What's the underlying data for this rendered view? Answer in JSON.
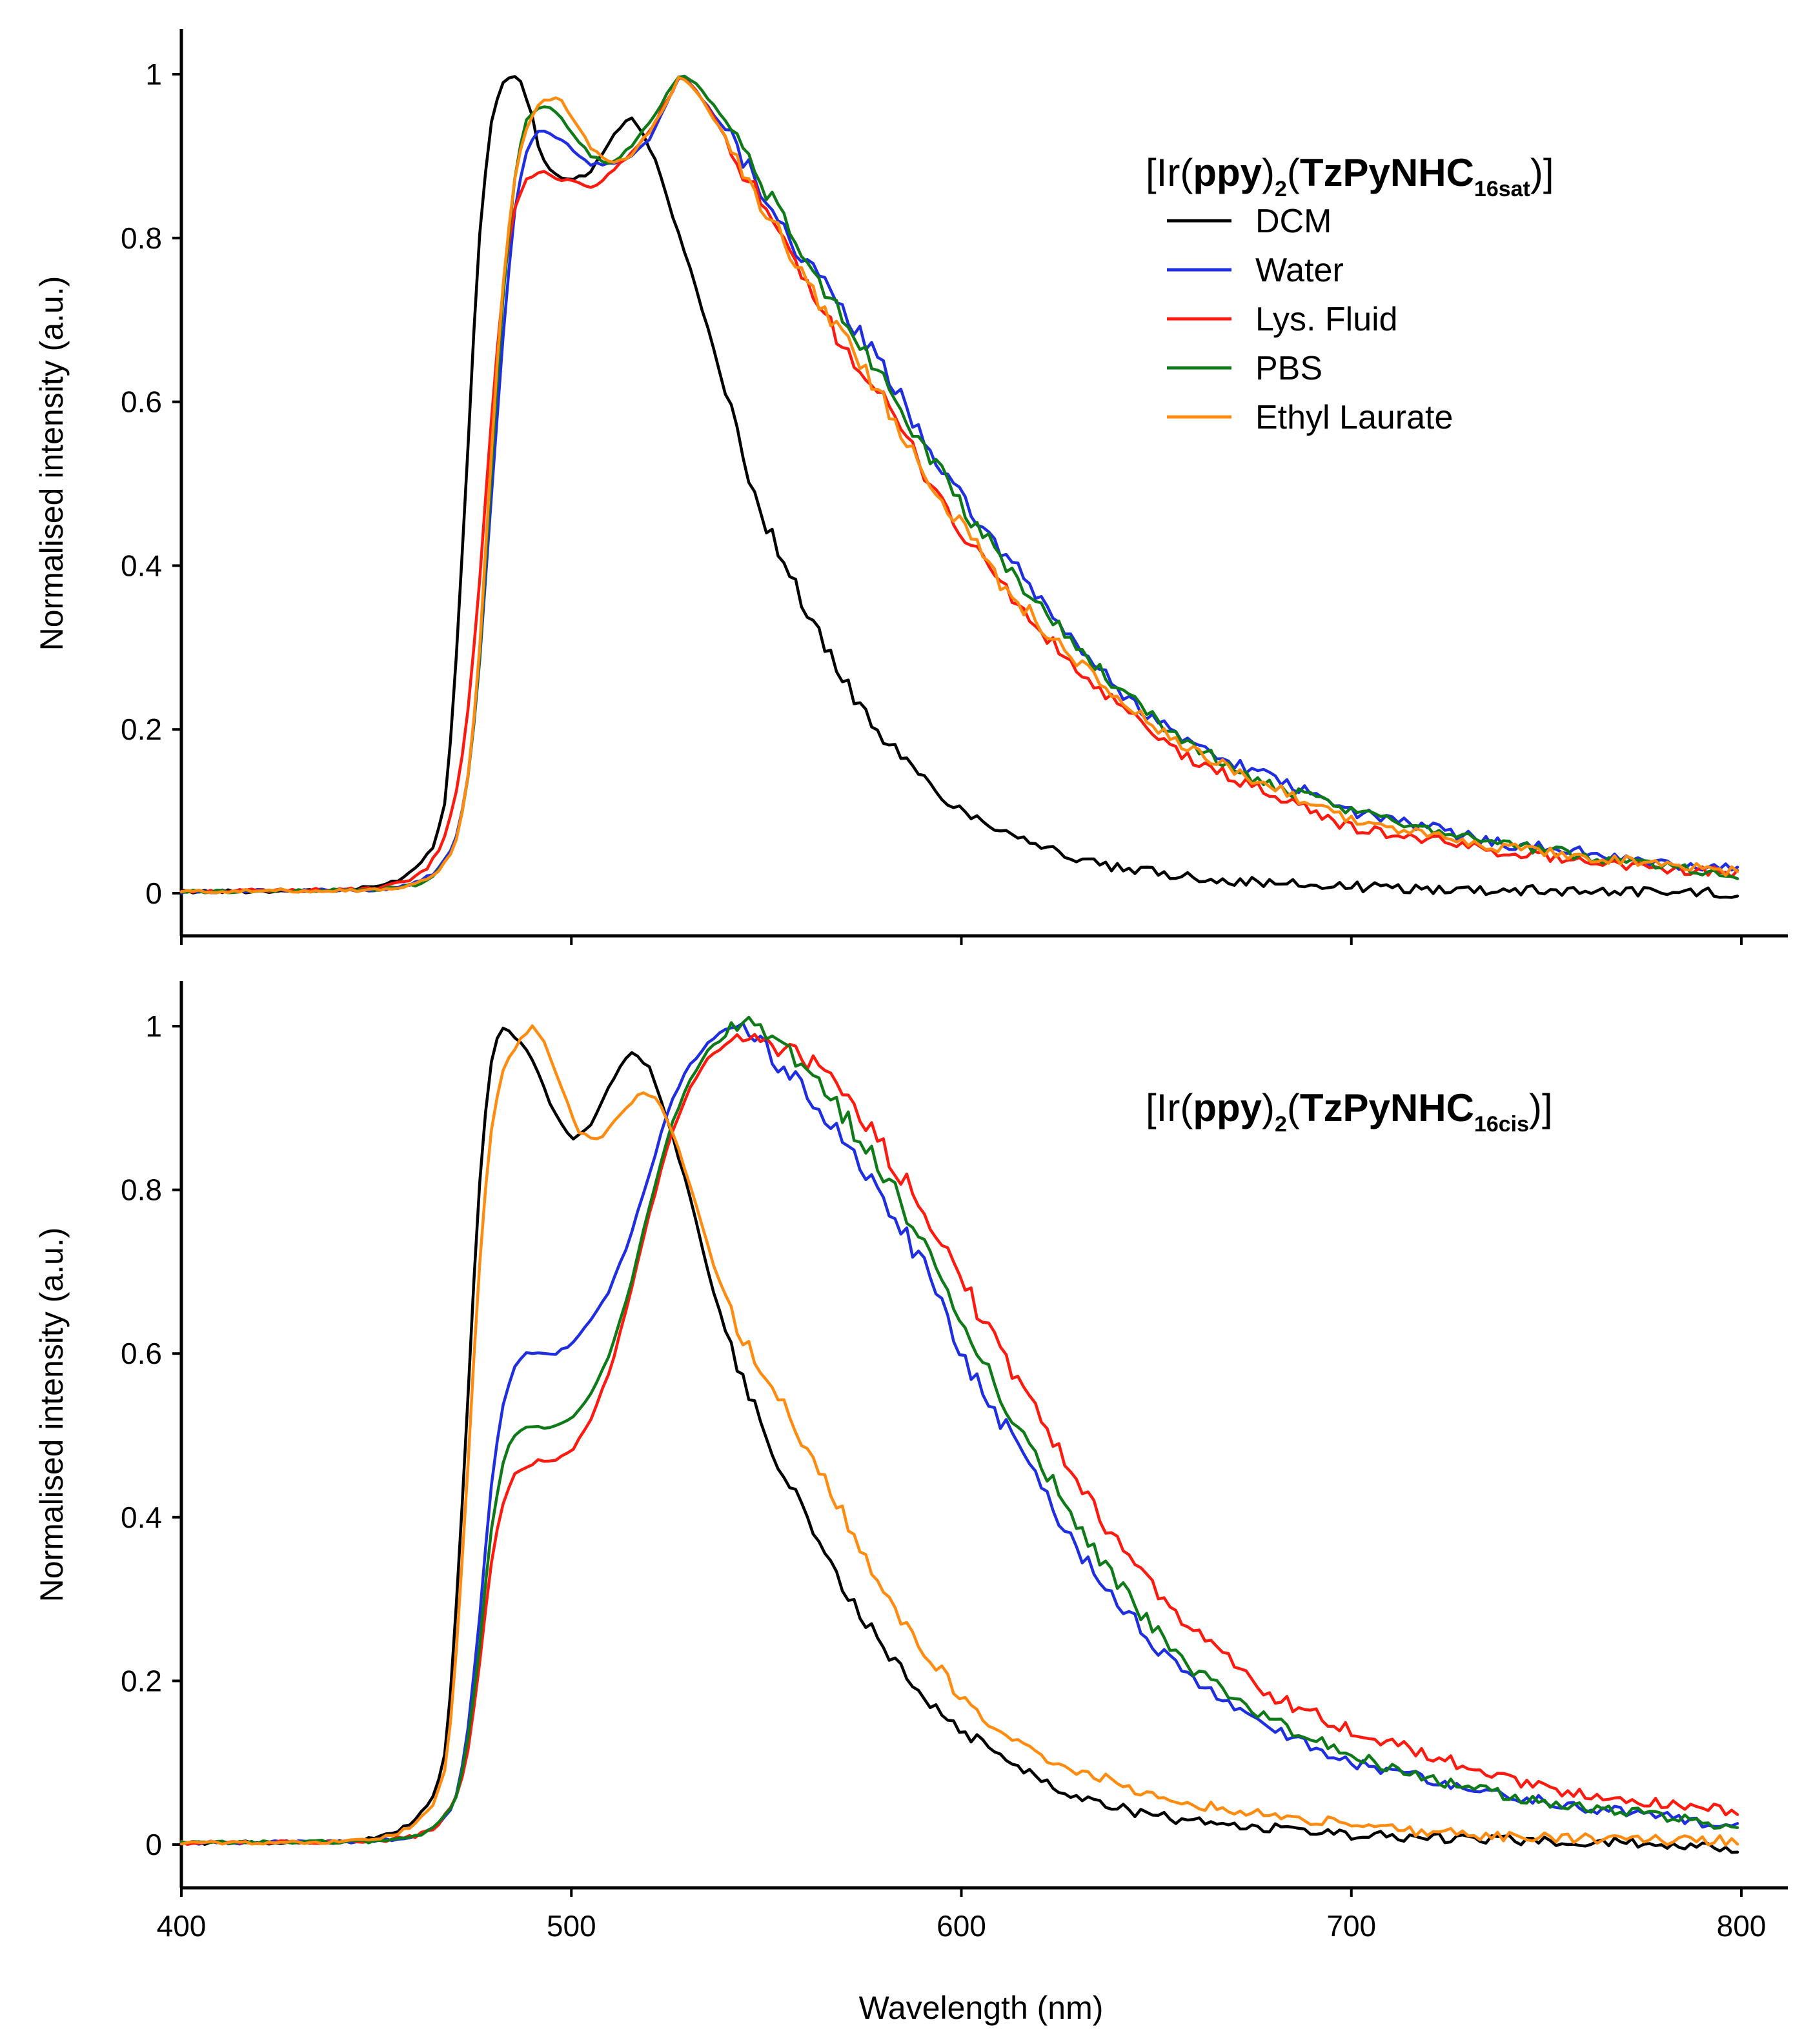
{
  "chart_data": [
    {
      "type": "line",
      "panel": "top",
      "title_parts": {
        "pre": "[Ir(",
        "b1": "ppy",
        "mid": ")",
        "sub1": "2",
        "mid2": "(",
        "b2": "TzPyNHC",
        "sub2": "16sat",
        "post": ")]"
      },
      "xlabel": "Wavelength (nm)",
      "ylabel": "Normalised intensity (a.u.)",
      "xlim": [
        400,
        800
      ],
      "ylim": [
        -0.05,
        1.05
      ],
      "xticks": [
        400,
        500,
        600,
        700,
        800
      ],
      "yticks": [
        0,
        0.2,
        0.4,
        0.6,
        0.8,
        1
      ],
      "xtick_labels": [
        "400",
        "500",
        "600",
        "700",
        "800"
      ],
      "ytick_labels": [
        "0",
        "0.2",
        "0.4",
        "0.6",
        "0.8",
        "1"
      ],
      "legend": "top-right",
      "series": [
        {
          "name": "DCM",
          "color": "#000000",
          "x": [
            400,
            440,
            450,
            455,
            460,
            465,
            468,
            470,
            473,
            476,
            479,
            482,
            485,
            487,
            490,
            492,
            495,
            500,
            505,
            510,
            515,
            518,
            522,
            525,
            530,
            535,
            540,
            545,
            550,
            555,
            560,
            565,
            570,
            575,
            580,
            590,
            600,
            610,
            620,
            630,
            640,
            650,
            660,
            670,
            680,
            690,
            700,
            720,
            740,
            760,
            780,
            800
          ],
          "y": [
            0.002,
            0.003,
            0.008,
            0.015,
            0.03,
            0.06,
            0.12,
            0.25,
            0.5,
            0.78,
            0.93,
            0.99,
            1.0,
            0.99,
            0.95,
            0.9,
            0.88,
            0.87,
            0.88,
            0.92,
            0.95,
            0.93,
            0.89,
            0.84,
            0.77,
            0.69,
            0.6,
            0.52,
            0.45,
            0.4,
            0.35,
            0.3,
            0.26,
            0.22,
            0.19,
            0.14,
            0.1,
            0.08,
            0.06,
            0.04,
            0.03,
            0.025,
            0.02,
            0.015,
            0.012,
            0.01,
            0.008,
            0.005,
            0.004,
            0.003,
            0.002,
            0.0
          ]
        },
        {
          "name": "Water",
          "color": "#1f2ee0",
          "x": [
            400,
            450,
            460,
            465,
            470,
            473,
            476,
            479,
            482,
            485,
            488,
            491,
            494,
            497,
            500,
            505,
            510,
            515,
            520,
            525,
            528,
            532,
            540,
            550,
            560,
            570,
            580,
            590,
            600,
            610,
            620,
            630,
            640,
            650,
            660,
            670,
            680,
            700,
            720,
            740,
            760,
            780,
            800
          ],
          "y": [
            0.002,
            0.004,
            0.012,
            0.025,
            0.06,
            0.12,
            0.25,
            0.45,
            0.65,
            0.82,
            0.9,
            0.93,
            0.93,
            0.92,
            0.91,
            0.89,
            0.89,
            0.9,
            0.92,
            0.97,
            1.0,
            0.98,
            0.93,
            0.85,
            0.77,
            0.71,
            0.64,
            0.56,
            0.48,
            0.42,
            0.36,
            0.3,
            0.25,
            0.21,
            0.18,
            0.16,
            0.14,
            0.1,
            0.08,
            0.06,
            0.05,
            0.035,
            0.03
          ]
        },
        {
          "name": "Lys. Fluid",
          "color": "#ff1a10",
          "x": [
            400,
            450,
            458,
            463,
            467,
            470,
            473,
            476,
            479,
            482,
            485,
            488,
            491,
            494,
            497,
            500,
            505,
            510,
            515,
            520,
            525,
            528,
            532,
            540,
            550,
            560,
            570,
            580,
            590,
            600,
            610,
            620,
            630,
            640,
            650,
            660,
            670,
            680,
            700,
            720,
            740,
            760,
            780,
            800
          ],
          "y": [
            0.002,
            0.005,
            0.015,
            0.03,
            0.06,
            0.11,
            0.2,
            0.35,
            0.55,
            0.72,
            0.83,
            0.87,
            0.88,
            0.88,
            0.87,
            0.87,
            0.86,
            0.88,
            0.9,
            0.93,
            0.97,
            1.0,
            0.98,
            0.92,
            0.83,
            0.74,
            0.67,
            0.6,
            0.52,
            0.44,
            0.38,
            0.32,
            0.27,
            0.23,
            0.19,
            0.16,
            0.14,
            0.12,
            0.08,
            0.065,
            0.05,
            0.04,
            0.03,
            0.025
          ]
        },
        {
          "name": "PBS",
          "color": "#0f7a18",
          "x": [
            400,
            450,
            460,
            465,
            470,
            473,
            476,
            479,
            482,
            485,
            488,
            491,
            494,
            497,
            500,
            505,
            510,
            515,
            520,
            525,
            528,
            532,
            540,
            550,
            560,
            570,
            580,
            590,
            600,
            610,
            620,
            630,
            640,
            650,
            660,
            670,
            680,
            700,
            720,
            740,
            760,
            780,
            800
          ],
          "y": [
            0.002,
            0.004,
            0.01,
            0.022,
            0.055,
            0.12,
            0.25,
            0.48,
            0.7,
            0.86,
            0.94,
            0.96,
            0.96,
            0.95,
            0.93,
            0.9,
            0.89,
            0.91,
            0.94,
            0.98,
            1.0,
            0.99,
            0.94,
            0.86,
            0.77,
            0.7,
            0.63,
            0.55,
            0.47,
            0.41,
            0.35,
            0.3,
            0.25,
            0.21,
            0.18,
            0.15,
            0.13,
            0.1,
            0.08,
            0.06,
            0.045,
            0.035,
            0.02
          ]
        },
        {
          "name": "Ethyl Laurate",
          "color": "#ff8c10",
          "x": [
            400,
            450,
            460,
            465,
            470,
            473,
            476,
            479,
            482,
            485,
            488,
            491,
            494,
            497,
            500,
            505,
            510,
            515,
            520,
            525,
            528,
            532,
            540,
            550,
            560,
            570,
            580,
            590,
            600,
            610,
            620,
            630,
            640,
            650,
            660,
            670,
            680,
            700,
            720,
            740,
            760,
            780,
            800
          ],
          "y": [
            0.002,
            0.004,
            0.01,
            0.022,
            0.055,
            0.12,
            0.26,
            0.5,
            0.72,
            0.86,
            0.93,
            0.96,
            0.97,
            0.97,
            0.95,
            0.91,
            0.89,
            0.9,
            0.93,
            0.97,
            1.0,
            0.98,
            0.92,
            0.83,
            0.75,
            0.68,
            0.6,
            0.52,
            0.45,
            0.38,
            0.33,
            0.28,
            0.24,
            0.2,
            0.17,
            0.15,
            0.13,
            0.09,
            0.07,
            0.055,
            0.045,
            0.035,
            0.025
          ]
        }
      ]
    },
    {
      "type": "line",
      "panel": "bottom",
      "title_parts": {
        "pre": "[Ir(",
        "b1": "ppy",
        "mid": ")",
        "sub1": "2",
        "mid2": "(",
        "b2": "TzPyNHC",
        "sub2": "16cis",
        "post": ")]"
      },
      "xlabel": "Wavelength (nm)",
      "ylabel": "Normalised intensity (a.u.)",
      "xlim": [
        400,
        800
      ],
      "ylim": [
        -0.05,
        1.05
      ],
      "xticks": [
        400,
        500,
        600,
        700,
        800
      ],
      "yticks": [
        0,
        0.2,
        0.4,
        0.6,
        0.8,
        1
      ],
      "xtick_labels": [
        "400",
        "500",
        "600",
        "700",
        "800"
      ],
      "ytick_labels": [
        "0",
        "0.2",
        "0.4",
        "0.6",
        "0.8",
        "1"
      ],
      "series": [
        {
          "name": "DCM",
          "color": "#000000",
          "x": [
            400,
            440,
            450,
            455,
            460,
            465,
            468,
            470,
            473,
            476,
            479,
            482,
            485,
            487,
            490,
            495,
            500,
            505,
            510,
            515,
            520,
            525,
            530,
            535,
            540,
            545,
            550,
            555,
            560,
            570,
            580,
            590,
            600,
            610,
            620,
            630,
            640,
            650,
            660,
            680,
            700,
            720,
            740,
            760,
            780,
            800
          ],
          "y": [
            0.002,
            0.003,
            0.008,
            0.015,
            0.03,
            0.06,
            0.12,
            0.25,
            0.5,
            0.78,
            0.95,
            1.0,
            0.99,
            0.98,
            0.96,
            0.9,
            0.86,
            0.88,
            0.93,
            0.97,
            0.95,
            0.88,
            0.8,
            0.7,
            0.62,
            0.55,
            0.5,
            0.45,
            0.4,
            0.31,
            0.24,
            0.18,
            0.14,
            0.11,
            0.08,
            0.06,
            0.045,
            0.035,
            0.028,
            0.02,
            0.012,
            0.008,
            0.005,
            0.003,
            0.001,
            -0.005
          ]
        },
        {
          "name": "Water",
          "color": "#1f2ee0",
          "x": [
            400,
            450,
            460,
            465,
            470,
            473,
            476,
            479,
            482,
            485,
            488,
            492,
            496,
            500,
            505,
            510,
            515,
            520,
            525,
            530,
            535,
            540,
            545,
            550,
            560,
            570,
            580,
            590,
            600,
            610,
            620,
            630,
            640,
            650,
            660,
            670,
            680,
            700,
            720,
            740,
            760,
            780,
            800
          ],
          "y": [
            0.002,
            0.004,
            0.01,
            0.02,
            0.05,
            0.12,
            0.25,
            0.42,
            0.53,
            0.58,
            0.6,
            0.6,
            0.6,
            0.61,
            0.64,
            0.68,
            0.74,
            0.82,
            0.9,
            0.95,
            0.98,
            1.0,
            0.99,
            0.97,
            0.92,
            0.86,
            0.79,
            0.71,
            0.6,
            0.52,
            0.44,
            0.36,
            0.3,
            0.24,
            0.2,
            0.17,
            0.14,
            0.1,
            0.08,
            0.06,
            0.045,
            0.035,
            0.02
          ]
        },
        {
          "name": "Lys. Fluid",
          "color": "#ff1a10",
          "x": [
            400,
            450,
            460,
            465,
            470,
            473,
            476,
            479,
            482,
            485,
            488,
            492,
            496,
            500,
            505,
            510,
            515,
            520,
            525,
            530,
            535,
            540,
            545,
            550,
            560,
            570,
            580,
            590,
            600,
            610,
            620,
            630,
            640,
            650,
            660,
            670,
            680,
            700,
            720,
            740,
            760,
            780,
            800
          ],
          "y": [
            0.002,
            0.004,
            0.01,
            0.02,
            0.05,
            0.1,
            0.2,
            0.33,
            0.41,
            0.45,
            0.46,
            0.47,
            0.47,
            0.48,
            0.52,
            0.58,
            0.67,
            0.77,
            0.86,
            0.92,
            0.96,
            0.98,
            0.99,
            0.98,
            0.96,
            0.92,
            0.85,
            0.78,
            0.69,
            0.6,
            0.52,
            0.44,
            0.37,
            0.31,
            0.26,
            0.22,
            0.18,
            0.14,
            0.11,
            0.08,
            0.06,
            0.05,
            0.04
          ]
        },
        {
          "name": "PBS",
          "color": "#0f7a18",
          "x": [
            400,
            450,
            460,
            465,
            470,
            473,
            476,
            479,
            482,
            485,
            488,
            492,
            496,
            500,
            505,
            510,
            515,
            520,
            525,
            530,
            535,
            540,
            545,
            550,
            560,
            570,
            580,
            590,
            600,
            610,
            620,
            630,
            640,
            650,
            660,
            670,
            680,
            700,
            720,
            740,
            760,
            780,
            800
          ],
          "y": [
            0.002,
            0.004,
            0.01,
            0.02,
            0.05,
            0.11,
            0.22,
            0.37,
            0.46,
            0.5,
            0.51,
            0.51,
            0.51,
            0.52,
            0.55,
            0.6,
            0.68,
            0.78,
            0.87,
            0.93,
            0.97,
            0.99,
            1.0,
            0.99,
            0.95,
            0.89,
            0.82,
            0.74,
            0.63,
            0.55,
            0.47,
            0.39,
            0.32,
            0.26,
            0.21,
            0.18,
            0.15,
            0.11,
            0.08,
            0.06,
            0.045,
            0.035,
            0.02
          ]
        },
        {
          "name": "Ethyl Laurate",
          "color": "#ff8c10",
          "x": [
            400,
            440,
            450,
            455,
            460,
            465,
            468,
            470,
            473,
            476,
            479,
            482,
            485,
            488,
            490,
            493,
            497,
            502,
            507,
            512,
            518,
            522,
            527,
            532,
            537,
            542,
            547,
            552,
            560,
            570,
            580,
            590,
            600,
            610,
            620,
            630,
            640,
            650,
            660,
            670,
            680,
            700,
            720,
            740,
            760,
            780,
            800
          ],
          "y": [
            0.002,
            0.003,
            0.007,
            0.013,
            0.025,
            0.05,
            0.1,
            0.2,
            0.42,
            0.68,
            0.86,
            0.94,
            0.97,
            0.99,
            1.0,
            0.98,
            0.93,
            0.87,
            0.86,
            0.89,
            0.92,
            0.91,
            0.86,
            0.78,
            0.7,
            0.64,
            0.59,
            0.55,
            0.49,
            0.4,
            0.31,
            0.24,
            0.18,
            0.14,
            0.11,
            0.09,
            0.075,
            0.06,
            0.05,
            0.042,
            0.035,
            0.025,
            0.015,
            0.01,
            0.008,
            0.005,
            0.005
          ]
        }
      ]
    }
  ]
}
